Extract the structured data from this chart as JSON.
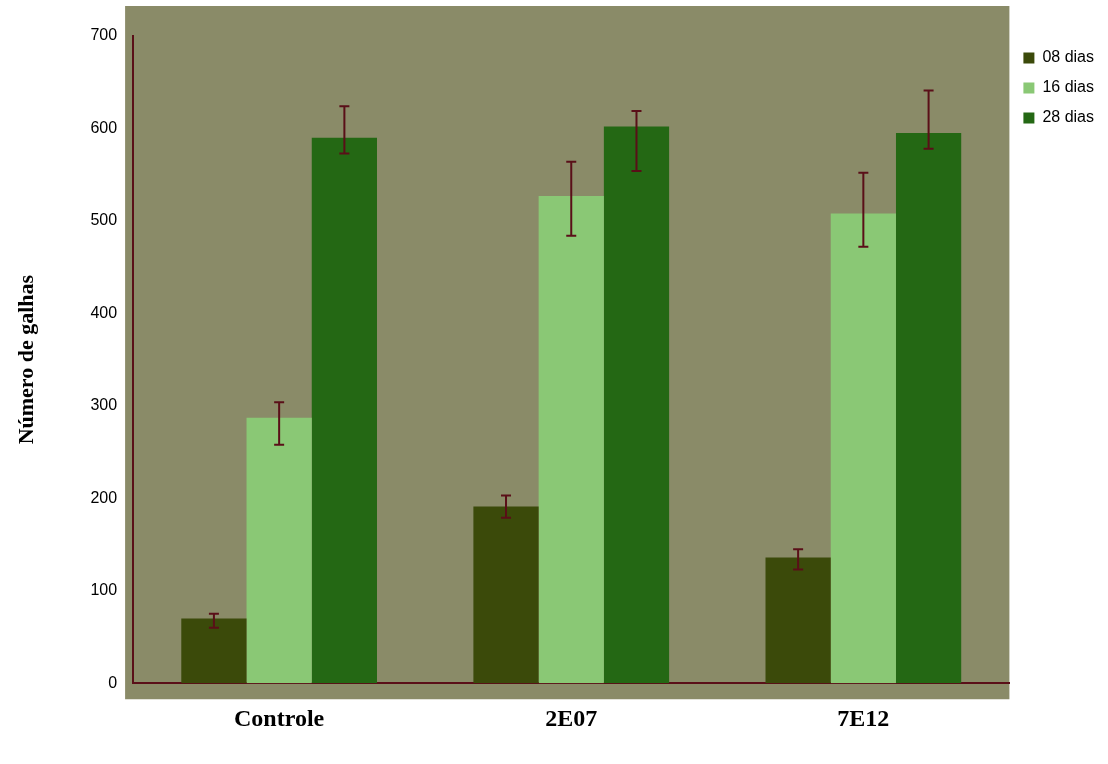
{
  "chart_data": {
    "type": "bar",
    "ylabel": "Número de galhas",
    "categories": [
      "Controle",
      "2E07",
      "7E12"
    ],
    "series": [
      {
        "name": "08 dias",
        "color": "#3b4a0a",
        "values": [
          70,
          191,
          136
        ],
        "errors": [
          [
            60,
            75
          ],
          [
            179,
            203
          ],
          [
            123,
            145
          ]
        ]
      },
      {
        "name": "16 dias",
        "color": "#8ac875",
        "values": [
          287,
          527,
          508
        ],
        "errors": [
          [
            258,
            304
          ],
          [
            484,
            564
          ],
          [
            472,
            552
          ]
        ]
      },
      {
        "name": "28 dias",
        "color": "#246814",
        "values": [
          590,
          602,
          595
        ],
        "errors": [
          [
            573,
            624
          ],
          [
            554,
            619
          ],
          [
            578,
            641
          ]
        ]
      }
    ],
    "ylim": [
      0,
      700
    ],
    "yticks": [
      0,
      100,
      200,
      300,
      400,
      500,
      600,
      700
    ],
    "grid": false,
    "legend": "top right"
  }
}
